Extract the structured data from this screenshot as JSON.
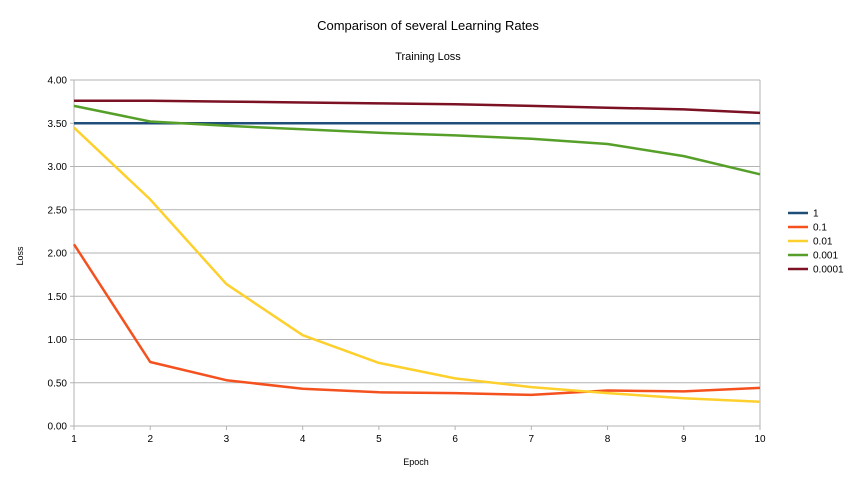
{
  "chart_data": {
    "type": "line",
    "title": "Comparison of several Learning Rates",
    "subtitle": "Training Loss",
    "xlabel": "Epoch",
    "ylabel": "Loss",
    "x": [
      1,
      2,
      3,
      4,
      5,
      6,
      7,
      8,
      9,
      10
    ],
    "x_ticks": [
      "1",
      "2",
      "3",
      "4",
      "5",
      "6",
      "7",
      "8",
      "9",
      "10"
    ],
    "y_ticks": [
      "0.00",
      "0.50",
      "1.00",
      "1.50",
      "2.00",
      "2.50",
      "3.00",
      "3.50",
      "4.00"
    ],
    "ylim": [
      0,
      4
    ],
    "xlim": [
      1,
      10
    ],
    "grid": true,
    "legend_position": "right",
    "series": [
      {
        "name": "1",
        "color": "#1f4e79",
        "values": [
          3.5,
          3.5,
          3.5,
          3.5,
          3.5,
          3.5,
          3.5,
          3.5,
          3.5,
          3.5
        ]
      },
      {
        "name": "0.1",
        "color": "#f4511e",
        "values": [
          2.1,
          0.74,
          0.53,
          0.43,
          0.39,
          0.38,
          0.36,
          0.41,
          0.4,
          0.44
        ]
      },
      {
        "name": "0.01",
        "color": "#fdd02d",
        "values": [
          3.45,
          2.62,
          1.64,
          1.05,
          0.73,
          0.55,
          0.45,
          0.38,
          0.32,
          0.28
        ]
      },
      {
        "name": "0.001",
        "color": "#56a02a",
        "values": [
          3.7,
          3.52,
          3.47,
          3.43,
          3.39,
          3.36,
          3.32,
          3.26,
          3.12,
          2.91
        ]
      },
      {
        "name": "0.0001",
        "color": "#7b1123",
        "values": [
          3.76,
          3.76,
          3.75,
          3.74,
          3.73,
          3.72,
          3.7,
          3.68,
          3.66,
          3.62
        ]
      }
    ]
  }
}
